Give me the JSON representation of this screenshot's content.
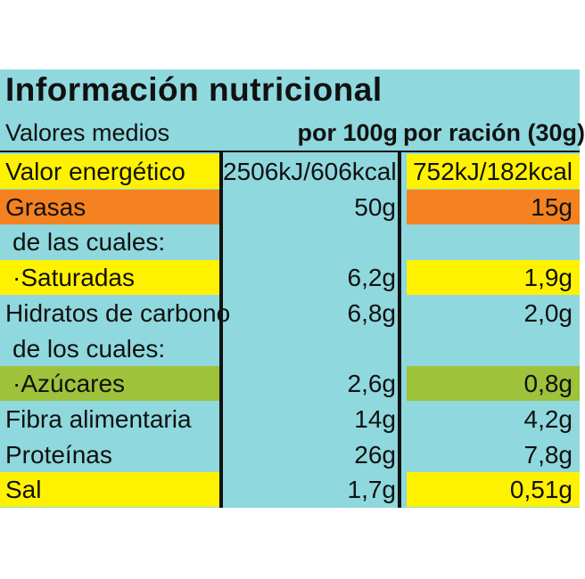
{
  "title": "Información nutricional",
  "header": {
    "left": "Valores medios",
    "col1": "por 100g",
    "col2": "por ración (30g)"
  },
  "colors": {
    "panel": "#8fd8de",
    "yellow": "#fff200",
    "orange": "#f58220",
    "green": "#9ec23a"
  },
  "rows": [
    {
      "name": "Valor energético",
      "v1": "2506kJ/606kcal",
      "v2": "752kJ/182kcal",
      "highlight": "yellow"
    },
    {
      "name": "Grasas",
      "v1": "50g",
      "v2": "15g",
      "highlight": "orange"
    },
    {
      "name": "de las cuales:",
      "v1": "",
      "v2": "",
      "highlight": "none"
    },
    {
      "name": "·Saturadas",
      "v1": "6,2g",
      "v2": "1,9g",
      "highlight": "yellow"
    },
    {
      "name": "Hidratos de carbono",
      "v1": "6,8g",
      "v2": "2,0g",
      "highlight": "none"
    },
    {
      "name": "de los cuales:",
      "v1": "",
      "v2": "",
      "highlight": "none"
    },
    {
      "name": "·Azúcares",
      "v1": "2,6g",
      "v2": "0,8g",
      "highlight": "green"
    },
    {
      "name": "Fibra alimentaria",
      "v1": "14g",
      "v2": "4,2g",
      "highlight": "none"
    },
    {
      "name": "Proteínas",
      "v1": "26g",
      "v2": "7,8g",
      "highlight": "none"
    },
    {
      "name": "Sal",
      "v1": "1,7g",
      "v2": "0,51g",
      "highlight": "yellow"
    }
  ]
}
